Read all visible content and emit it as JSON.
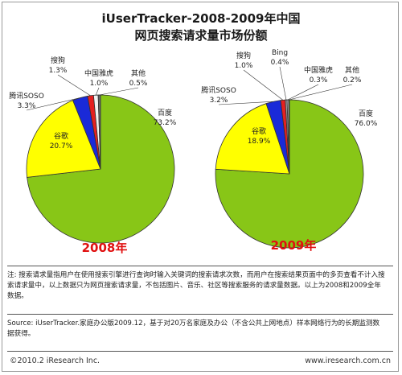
{
  "title_line1": "iUserTracker-2008-2009年中国",
  "title_line2": "网页搜索请求量市场份额",
  "chart_data": [
    {
      "type": "pie",
      "year_label": "2008年",
      "slices": [
        {
          "label": "百度",
          "value": 73.2,
          "display": "73.2%",
          "color": "#88c617"
        },
        {
          "label": "谷歌",
          "value": 20.7,
          "display": "20.7%",
          "color": "#ffff00"
        },
        {
          "label": "腾讯SOSO",
          "value": 3.3,
          "display": "3.3%",
          "color": "#1a2ad8"
        },
        {
          "label": "搜狗",
          "value": 1.3,
          "display": "1.3%",
          "color": "#e52020"
        },
        {
          "label": "中国雅虎",
          "value": 1.0,
          "display": "1.0%",
          "color": "#f2f2f2"
        },
        {
          "label": "其他",
          "value": 0.5,
          "display": "0.5%",
          "color": "#6a6a6a"
        }
      ]
    },
    {
      "type": "pie",
      "year_label": "2009年",
      "slices": [
        {
          "label": "百度",
          "value": 76.0,
          "display": "76.0%",
          "color": "#88c617"
        },
        {
          "label": "谷歌",
          "value": 18.9,
          "display": "18.9%",
          "color": "#ffff00"
        },
        {
          "label": "腾讯SOSO",
          "value": 3.2,
          "display": "3.2%",
          "color": "#1a2ad8"
        },
        {
          "label": "搜狗",
          "value": 1.0,
          "display": "1.0%",
          "color": "#e52020"
        },
        {
          "label": "Bing",
          "value": 0.4,
          "display": "0.4%",
          "color": "#9a9a9a"
        },
        {
          "label": "中国雅虎",
          "value": 0.3,
          "display": "0.3%",
          "color": "#f2f2f2"
        },
        {
          "label": "其他",
          "value": 0.2,
          "display": "0.2%",
          "color": "#3a3a3a"
        }
      ]
    }
  ],
  "note_text": "注: 搜索请求量指用户在使用搜索引擎进行查询时输入关键词的搜索请求次数，而用户在搜索结果页面中的多页查看不计入搜索请求量中，以上数据只为网页搜索请求量，不包括图片、音乐、社区等搜索服务的请求量数据。以上为2008和2009全年数据。",
  "source_text": "Source: iUserTracker.家庭办公版2009.12，基于对20万名家庭及办公（不含公共上网地点）样本网络行为的长期监测数据获得。",
  "copyright": "©2010.2 iResearch Inc.",
  "website": "www.iresearch.com.cn"
}
